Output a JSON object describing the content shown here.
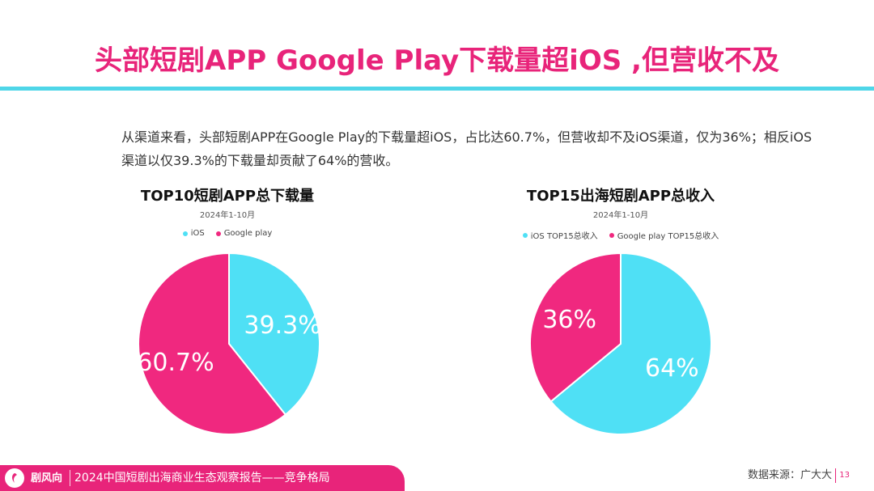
{
  "header": {
    "title": "头部短剧APP Google Play下载量超iOS ,但营收不及"
  },
  "intro": {
    "text": "从渠道来看，头部短剧APP在Google Play的下载量超iOS，占比达60.7%，但营收却不及iOS渠道，仅为36%；相反iOS渠道以仅39.3%的下载量却贡献了64%的营收。"
  },
  "colors": {
    "accent_pink": "#e8247a",
    "accent_cyan": "#4fd6e8",
    "ios": "#4fe0f5",
    "google": "#f0287f"
  },
  "chart_data": [
    {
      "type": "pie",
      "title": "TOP10短剧APP总下载量",
      "subtitle": "2024年1-10月",
      "legend_position": "top",
      "series": [
        {
          "name": "iOS",
          "value": 39.3,
          "label": "39.3%",
          "color": "#4fe0f5"
        },
        {
          "name": "Google play",
          "value": 60.7,
          "label": "60.7%",
          "color": "#f0287f"
        }
      ]
    },
    {
      "type": "pie",
      "title": "TOP15出海短剧APP总收入",
      "subtitle": "2024年1-10月",
      "legend_position": "top",
      "series": [
        {
          "name": "iOS TOP15总收入",
          "value": 64,
          "label": "64%",
          "color": "#4fe0f5"
        },
        {
          "name": "Google play TOP15总收入",
          "value": 36,
          "label": "36%",
          "color": "#f0287f"
        }
      ]
    }
  ],
  "footer": {
    "brand": "剧风向",
    "report": "2024中国短剧出海商业生态观察报告——竞争格局",
    "source": "数据来源：广大大",
    "page": "13"
  }
}
